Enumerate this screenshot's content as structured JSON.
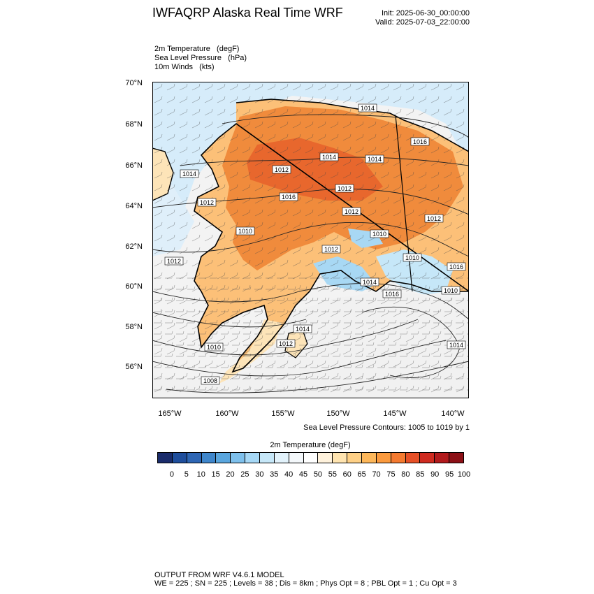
{
  "header": {
    "title": "IWFAQRP Alaska Real Time WRF",
    "init": "Init: 2025-06-30_00:00:00",
    "valid": "Valid: 2025-07-03_22:00:00"
  },
  "fields": [
    "2m Temperature   (degF)",
    "Sea Level Pressure   (hPa)",
    "10m Winds   (kts)"
  ],
  "map": {
    "lat_labels": [
      "70°N",
      "68°N",
      "66°N",
      "64°N",
      "62°N",
      "60°N",
      "58°N",
      "56°N"
    ],
    "lon_labels": [
      "165°W",
      "160°W",
      "155°W",
      "150°W",
      "145°W",
      "140°W"
    ],
    "contour_labels": [
      "1014",
      "1016",
      "1014",
      "1014",
      "1014",
      "1012",
      "1016",
      "1012",
      "1012",
      "1010",
      "1010",
      "1012",
      "1012",
      "1012",
      "1010",
      "1014",
      "1016",
      "1010",
      "1014",
      "1014",
      "1012",
      "1016",
      "1010",
      "1008",
      "1012"
    ],
    "colors": {
      "ocean_cold": "#d6ecfa",
      "sea_mild": "#f4f4f4",
      "land_hot": "#f08b3c",
      "land_warm": "#fcc078",
      "land_mild": "#fde4b8",
      "snow_cold": "#a8d8f4"
    }
  },
  "contour_note": "Sea Level Pressure Contours: 1005 to 1019 by 1",
  "colorbar": {
    "title": "2m Temperature  (degF)",
    "colors": [
      "#1a2c6b",
      "#1f4e9c",
      "#2e66b4",
      "#3f86cb",
      "#5aa6de",
      "#7ec0ec",
      "#a6d8f6",
      "#c6e7f8",
      "#e2f2fb",
      "#f4f8fb",
      "#ffffff",
      "#fff2dc",
      "#ffe4b0",
      "#fed086",
      "#fdb75a",
      "#fb9a3e",
      "#f47a30",
      "#e65027",
      "#cf2b20",
      "#b21a1c",
      "#8c1016"
    ],
    "ticks": [
      "0",
      "5",
      "10",
      "15",
      "20",
      "25",
      "30",
      "35",
      "40",
      "45",
      "50",
      "55",
      "60",
      "65",
      "70",
      "75",
      "80",
      "85",
      "90",
      "95",
      "100"
    ]
  },
  "footer": {
    "line1": "OUTPUT FROM WRF V4.6.1 MODEL",
    "line2": "WE = 225 ; SN = 225 ; Levels = 38 ; Dis = 8km ; Phys Opt = 8 ; PBL Opt = 1 ; Cu Opt = 3"
  }
}
